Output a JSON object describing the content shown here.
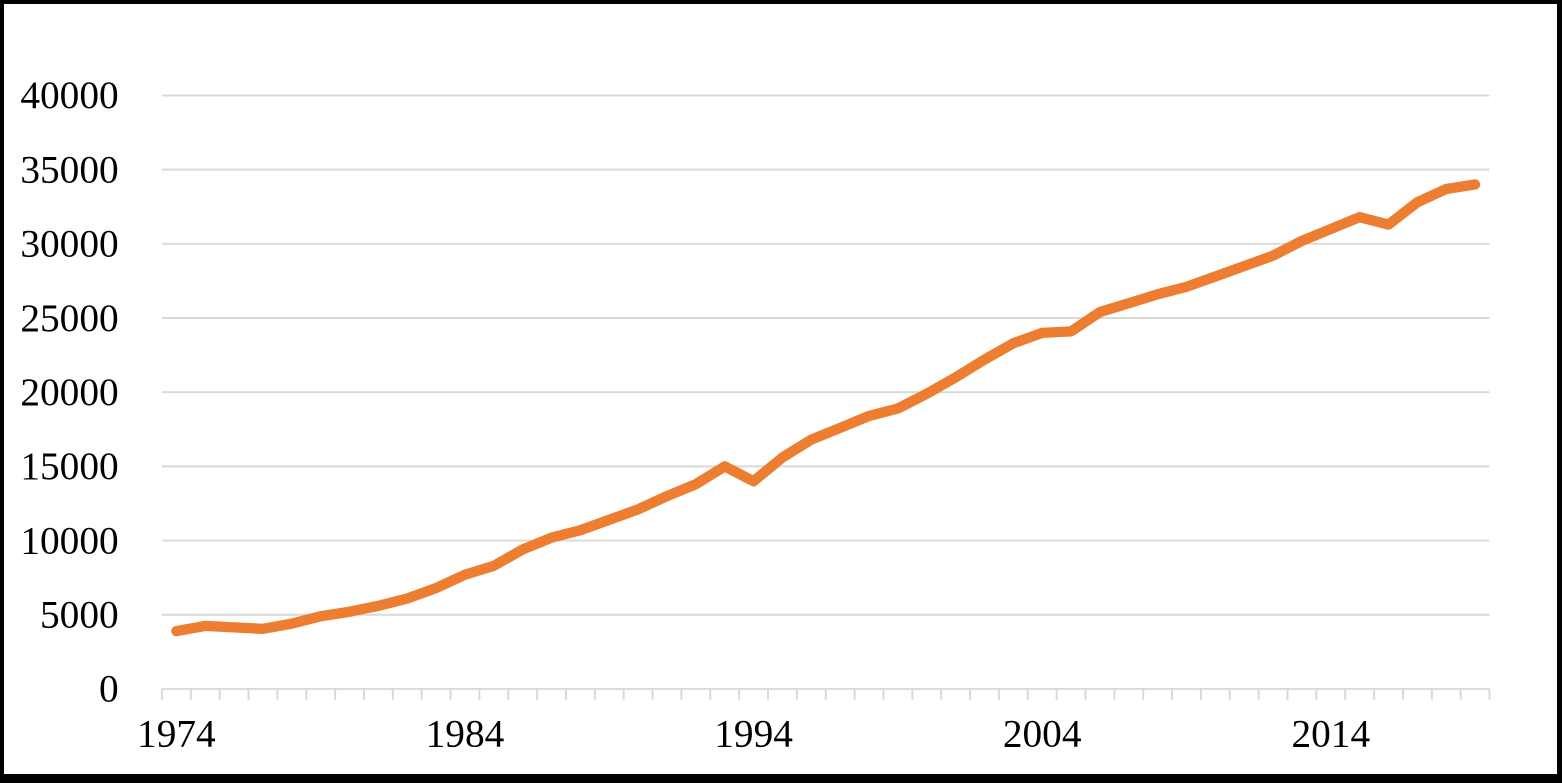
{
  "chart_data": {
    "type": "line",
    "title": "",
    "xlabel": "",
    "ylabel": "",
    "legend": "none",
    "grid": "horizontal",
    "categories": [
      1974,
      1975,
      1976,
      1977,
      1978,
      1979,
      1980,
      1981,
      1982,
      1983,
      1984,
      1985,
      1986,
      1987,
      1988,
      1989,
      1990,
      1991,
      1992,
      1993,
      1994,
      1995,
      1996,
      1997,
      1998,
      1999,
      2000,
      2001,
      2002,
      2003,
      2004,
      2005,
      2006,
      2007,
      2008,
      2009,
      2010,
      2011,
      2012,
      2013,
      2014,
      2015,
      2016,
      2017,
      2018,
      2019
    ],
    "series": [
      {
        "color": "#ED7D31",
        "values": [
          3900,
          4250,
          4150,
          4050,
          4400,
          4900,
          5200,
          5600,
          6100,
          6800,
          7700,
          8300,
          9400,
          10200,
          10700,
          11400,
          12100,
          13000,
          13800,
          15000,
          14000,
          15600,
          16800,
          17600,
          18400,
          18900,
          19900,
          21000,
          22200,
          23300,
          24000,
          24100,
          25400,
          26000,
          26600,
          27100,
          27800,
          28500,
          29200,
          30200,
          31000,
          31800,
          31300,
          32800,
          33700,
          34000
        ]
      }
    ],
    "ylim": [
      0,
      40000
    ],
    "yticks": [
      {
        "value": 0,
        "label": "0"
      },
      {
        "value": 5000,
        "label": "5000"
      },
      {
        "value": 10000,
        "label": "10000"
      },
      {
        "value": 15000,
        "label": "15000"
      },
      {
        "value": 20000,
        "label": "20000"
      },
      {
        "value": 25000,
        "label": "25000"
      },
      {
        "value": 30000,
        "label": "30000"
      },
      {
        "value": 35000,
        "label": "35000"
      },
      {
        "value": 40000,
        "label": "40000"
      }
    ],
    "xticks": [
      {
        "index": 0,
        "label": "1974"
      },
      {
        "index": 10,
        "label": "1984"
      },
      {
        "index": 20,
        "label": "1994"
      },
      {
        "index": 30,
        "label": "2004"
      },
      {
        "index": 40,
        "label": "2014"
      }
    ],
    "colors": {
      "line": "#ED7D31",
      "gridline": "#D9D9D9",
      "axis": "#D9D9D9",
      "text": "#000000",
      "background": "#FFFFFF",
      "border": "#000000"
    }
  }
}
